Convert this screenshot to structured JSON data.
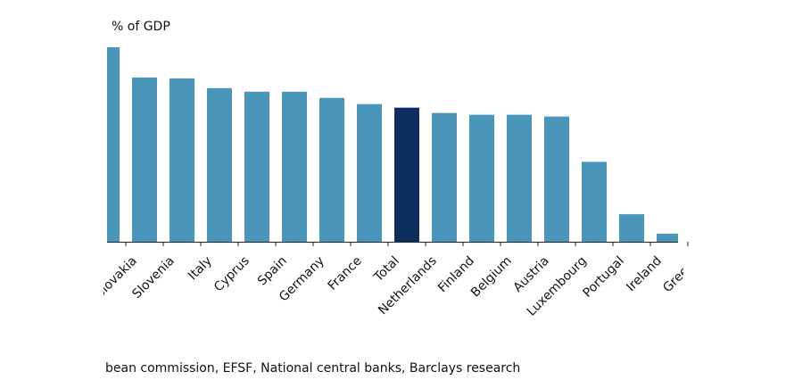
{
  "chart_data": {
    "type": "bar",
    "title": "% of GDP",
    "categories": [
      null,
      "Slovakia",
      "Slovenia",
      "Italy",
      "Cyprus",
      "Spain",
      "Germany",
      "France",
      "Total",
      "Netherlands",
      "Finland",
      "Belgium",
      "Austria",
      "Luxembourg",
      "Portugal",
      "Ireland",
      "Greece"
    ],
    "values": [
      219,
      185,
      184,
      173,
      169,
      169,
      162,
      155,
      151,
      145,
      143,
      143,
      141,
      90,
      31,
      9,
      null
    ],
    "colors": [
      "#4a96bb",
      "#4a96bb",
      "#4a96bb",
      "#4a96bb",
      "#4a96bb",
      "#4a96bb",
      "#4a96bb",
      "#4a96bb",
      "#0d2d5e",
      "#4a96bb",
      "#4a96bb",
      "#4a96bb",
      "#4a96bb",
      "#4a96bb",
      "#4a96bb",
      "#4a96bb",
      "#4a96bb"
    ],
    "ylim": [
      0,
      220
    ],
    "source": "bean commission, EFSF, National central banks, Barclays research"
  }
}
